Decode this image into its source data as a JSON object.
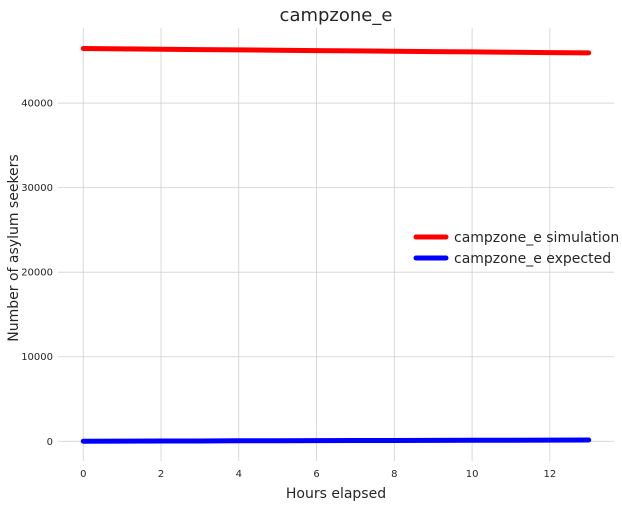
{
  "chart_data": {
    "type": "line",
    "title": "campzone_e",
    "xlabel": "Hours elapsed",
    "ylabel": "Number of asylum seekers",
    "xlim": [
      -0.65,
      13.65
    ],
    "ylim": [
      -2330,
      48880
    ],
    "xticks": [
      0,
      2,
      4,
      6,
      8,
      10,
      12
    ],
    "yticks": [
      0,
      10000,
      20000,
      30000,
      40000
    ],
    "grid": true,
    "legend_position": "center-right",
    "series": [
      {
        "name": "campzone_e simulation",
        "color": "#ff0000",
        "x": [
          0,
          1,
          2,
          3,
          4,
          5,
          6,
          7,
          8,
          9,
          10,
          11,
          12,
          13
        ],
        "y": [
          46450,
          46410,
          46370,
          46330,
          46290,
          46250,
          46210,
          46170,
          46130,
          46090,
          46050,
          46010,
          45970,
          45930
        ]
      },
      {
        "name": "campzone_e expected",
        "color": "#0000ff",
        "x": [
          0,
          1,
          2,
          3,
          4,
          5,
          6,
          7,
          8,
          9,
          10,
          11,
          12,
          13
        ],
        "y": [
          10,
          20,
          30,
          40,
          60,
          70,
          80,
          90,
          100,
          110,
          120,
          130,
          140,
          150
        ]
      }
    ]
  }
}
